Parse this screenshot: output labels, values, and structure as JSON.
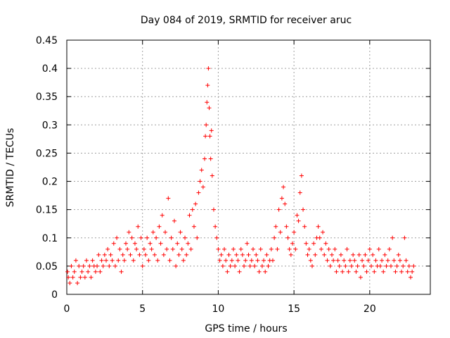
{
  "chart_data": {
    "type": "scatter",
    "title": "Day 084 of 2019, SRMTID for receiver aruc",
    "xlabel": "GPS time / hours",
    "ylabel": "SRMTID / TECUs",
    "xlim": [
      0,
      24
    ],
    "ylim": [
      0,
      0.45
    ],
    "x_ticks": [
      0,
      5,
      10,
      15,
      20
    ],
    "y_ticks": [
      0,
      0.05,
      0.1,
      0.15,
      0.2,
      0.25,
      0.3,
      0.35,
      0.4,
      0.45
    ],
    "x_tick_labels": [
      "0",
      "5",
      "10",
      "15",
      "20"
    ],
    "y_tick_labels": [
      "0",
      "0.05",
      "0.1",
      "0.15",
      "0.2",
      "0.25",
      "0.3",
      "0.35",
      "0.4",
      "0.45"
    ],
    "grid": true,
    "marker": "+",
    "color": "#ff0000",
    "series": [
      {
        "name": "SRMTID",
        "x": [
          0.05,
          0.1,
          0.2,
          0.3,
          0.4,
          0.5,
          0.6,
          0.7,
          0.8,
          0.9,
          1.0,
          1.1,
          1.2,
          1.3,
          1.4,
          1.5,
          1.6,
          1.7,
          1.8,
          1.9,
          2.0,
          2.1,
          2.2,
          2.3,
          2.4,
          2.5,
          2.6,
          2.7,
          2.8,
          2.9,
          3.0,
          3.1,
          3.2,
          3.3,
          3.4,
          3.5,
          3.6,
          3.7,
          3.8,
          3.9,
          4.0,
          4.1,
          4.2,
          4.3,
          4.4,
          4.5,
          4.6,
          4.7,
          4.8,
          4.9,
          5.0,
          5.1,
          5.2,
          5.3,
          5.4,
          5.5,
          5.6,
          5.7,
          5.8,
          5.9,
          6.0,
          6.1,
          6.2,
          6.3,
          6.4,
          6.5,
          6.6,
          6.7,
          6.8,
          6.9,
          7.0,
          7.1,
          7.2,
          7.3,
          7.4,
          7.5,
          7.6,
          7.7,
          7.8,
          7.9,
          8.0,
          8.1,
          8.2,
          8.3,
          8.4,
          8.5,
          8.6,
          8.7,
          8.8,
          8.9,
          9.0,
          9.1,
          9.15,
          9.2,
          9.25,
          9.3,
          9.35,
          9.4,
          9.45,
          9.5,
          9.55,
          9.6,
          9.7,
          9.8,
          9.9,
          10.0,
          10.1,
          10.2,
          10.3,
          10.4,
          10.5,
          10.6,
          10.7,
          10.8,
          10.9,
          11.0,
          11.1,
          11.2,
          11.3,
          11.4,
          11.5,
          11.6,
          11.7,
          11.8,
          11.9,
          12.0,
          12.1,
          12.2,
          12.3,
          12.4,
          12.5,
          12.6,
          12.7,
          12.8,
          12.9,
          13.0,
          13.1,
          13.2,
          13.3,
          13.4,
          13.5,
          13.6,
          13.7,
          13.8,
          13.9,
          14.0,
          14.1,
          14.2,
          14.3,
          14.4,
          14.5,
          14.6,
          14.7,
          14.8,
          14.9,
          15.0,
          15.1,
          15.2,
          15.3,
          15.4,
          15.5,
          15.6,
          15.7,
          15.8,
          15.9,
          16.0,
          16.1,
          16.2,
          16.3,
          16.4,
          16.5,
          16.6,
          16.7,
          16.8,
          16.9,
          17.0,
          17.1,
          17.2,
          17.3,
          17.4,
          17.5,
          17.6,
          17.7,
          17.8,
          17.9,
          18.0,
          18.1,
          18.2,
          18.3,
          18.4,
          18.5,
          18.6,
          18.7,
          18.8,
          18.9,
          19.0,
          19.1,
          19.2,
          19.3,
          19.4,
          19.5,
          19.6,
          19.7,
          19.8,
          19.9,
          20.0,
          20.1,
          20.2,
          20.3,
          20.4,
          20.5,
          20.6,
          20.7,
          20.8,
          20.9,
          21.0,
          21.1,
          21.2,
          21.3,
          21.4,
          21.5,
          21.6,
          21.7,
          21.8,
          21.9,
          22.0,
          22.1,
          22.2,
          22.3,
          22.4,
          22.5,
          22.6,
          22.7,
          22.8,
          22.9
        ],
        "y": [
          0.04,
          0.03,
          0.02,
          0.05,
          0.03,
          0.04,
          0.06,
          0.02,
          0.05,
          0.03,
          0.04,
          0.05,
          0.03,
          0.06,
          0.04,
          0.05,
          0.03,
          0.06,
          0.05,
          0.04,
          0.05,
          0.07,
          0.04,
          0.06,
          0.05,
          0.07,
          0.06,
          0.08,
          0.05,
          0.07,
          0.06,
          0.09,
          0.05,
          0.1,
          0.06,
          0.08,
          0.04,
          0.07,
          0.06,
          0.09,
          0.08,
          0.11,
          0.07,
          0.1,
          0.06,
          0.09,
          0.08,
          0.12,
          0.07,
          0.1,
          0.05,
          0.08,
          0.07,
          0.1,
          0.06,
          0.09,
          0.08,
          0.11,
          0.07,
          0.1,
          0.06,
          0.12,
          0.09,
          0.14,
          0.07,
          0.11,
          0.08,
          0.17,
          0.06,
          0.1,
          0.08,
          0.13,
          0.05,
          0.09,
          0.07,
          0.11,
          0.08,
          0.06,
          0.1,
          0.07,
          0.09,
          0.14,
          0.08,
          0.15,
          0.12,
          0.16,
          0.1,
          0.18,
          0.2,
          0.22,
          0.19,
          0.24,
          0.28,
          0.3,
          0.34,
          0.37,
          0.4,
          0.33,
          0.28,
          0.24,
          0.29,
          0.21,
          0.15,
          0.12,
          0.1,
          0.08,
          0.06,
          0.07,
          0.05,
          0.08,
          0.06,
          0.04,
          0.07,
          0.05,
          0.06,
          0.08,
          0.05,
          0.07,
          0.06,
          0.04,
          0.08,
          0.07,
          0.05,
          0.06,
          0.09,
          0.07,
          0.05,
          0.06,
          0.08,
          0.05,
          0.07,
          0.06,
          0.04,
          0.08,
          0.05,
          0.06,
          0.04,
          0.07,
          0.05,
          0.06,
          0.08,
          0.06,
          0.1,
          0.12,
          0.08,
          0.15,
          0.11,
          0.17,
          0.19,
          0.16,
          0.12,
          0.1,
          0.08,
          0.07,
          0.09,
          0.11,
          0.08,
          0.14,
          0.13,
          0.18,
          0.21,
          0.15,
          0.12,
          0.09,
          0.07,
          0.08,
          0.06,
          0.05,
          0.09,
          0.07,
          0.1,
          0.12,
          0.1,
          0.08,
          0.11,
          0.07,
          0.09,
          0.06,
          0.08,
          0.05,
          0.07,
          0.06,
          0.08,
          0.04,
          0.06,
          0.05,
          0.07,
          0.04,
          0.06,
          0.05,
          0.08,
          0.04,
          0.06,
          0.05,
          0.07,
          0.06,
          0.04,
          0.05,
          0.07,
          0.03,
          0.06,
          0.05,
          0.07,
          0.04,
          0.06,
          0.08,
          0.05,
          0.07,
          0.04,
          0.06,
          0.05,
          0.08,
          0.05,
          0.06,
          0.04,
          0.07,
          0.05,
          0.06,
          0.08,
          0.05,
          0.1,
          0.06,
          0.04,
          0.05,
          0.07,
          0.06,
          0.04,
          0.05,
          0.1,
          0.06,
          0.04,
          0.05,
          0.03,
          0.04,
          0.05
        ]
      }
    ]
  }
}
